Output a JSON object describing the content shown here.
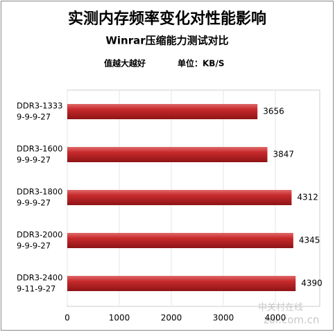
{
  "chart_data": {
    "type": "bar",
    "orientation": "horizontal",
    "title": "实测内存频率变化对性能影响",
    "subtitle": "Winrar压缩能力测试对比",
    "annotations": [
      "值越大越好",
      "单位：KB/S"
    ],
    "watermark": [
      "中关村在线",
      "zol.com.cn"
    ],
    "categories": [
      [
        "DDR3-1333",
        "9-9-9-27"
      ],
      [
        "DDR3-1600",
        "9-9-9-27"
      ],
      [
        "DDR3-1800",
        "9-9-9-27"
      ],
      [
        "DDR3-2000",
        "9-9-9-27"
      ],
      [
        "DDR3-2400",
        "9-11-9-27"
      ]
    ],
    "values": [
      3656,
      3847,
      4312,
      4345,
      4390
    ],
    "color": "#c0282a",
    "xlim": [
      0,
      4800
    ],
    "xticks": [
      0,
      1000,
      2000,
      3000,
      4000
    ],
    "grid": true
  }
}
